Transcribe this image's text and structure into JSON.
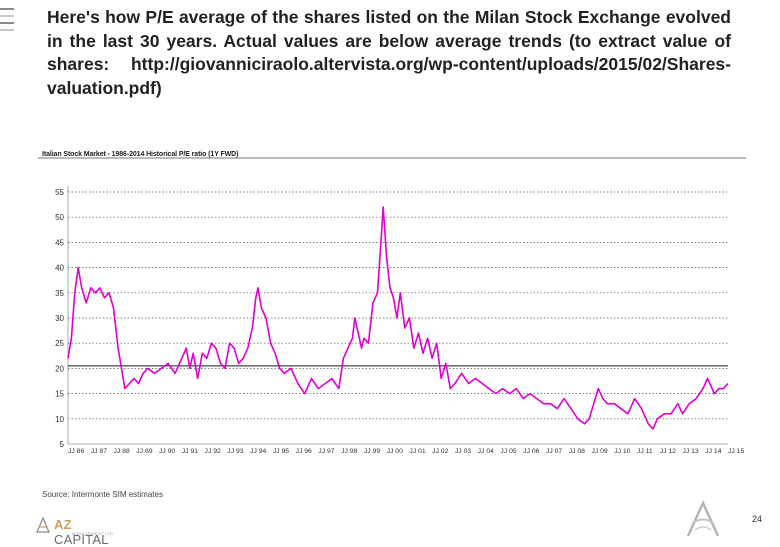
{
  "heading": "Here's how P/E average of the shares listed on the Milan Stock Exchange evolved in the last 30 years. Actual values are below average trends (to extract value of shares: http://giovanniciraolo.altervista.org/wp-content/uploads/2015/02/Shares-valuation.pdf)",
  "chart_title": "Italian Stock Market - 1986-2014 Historical P/E ratio (1Y FWD)",
  "source": "Source: Intermonte SIM estimates",
  "footer": {
    "logo_text_a": "AZ",
    "logo_text_b": "CAPITAL",
    "logo_sub": "MANAGEMENT LTD",
    "page_number": "24"
  },
  "colors": {
    "series": "#e000d0",
    "average_line": "#1a1a1a",
    "heading": "#222222"
  },
  "chart_data": {
    "type": "line",
    "title": "Italian Stock Market - 1986-2014 Historical P/E ratio (1Y FWD)",
    "xlabel": "",
    "ylabel": "",
    "ylim": [
      5,
      55
    ],
    "yticks": [
      5,
      10,
      15,
      20,
      25,
      30,
      35,
      40,
      45,
      50,
      55
    ],
    "xlim": [
      1986,
      2015
    ],
    "xtick_labels": [
      "JJ 86",
      "JJ 87",
      "JJ 88",
      "JJ 89",
      "JJ 90",
      "JJ 91",
      "JJ 92",
      "JJ 93",
      "JJ 94",
      "JJ 95",
      "JJ 96",
      "JJ 97",
      "JJ 98",
      "JJ 99",
      "JJ 00",
      "JJ 01",
      "JJ 02",
      "JJ 03",
      "JJ 04",
      "JJ 05",
      "JJ 06",
      "JJ 07",
      "JJ 08",
      "JJ 09",
      "JJ 10",
      "JJ 11",
      "JJ 12",
      "JJ 13",
      "JJ 14",
      "JJ 15"
    ],
    "grid": "horizontal dotted",
    "average_line": 20.5,
    "series": [
      {
        "values": [
          [
            1986.0,
            22
          ],
          [
            1986.15,
            26
          ],
          [
            1986.3,
            35
          ],
          [
            1986.45,
            40
          ],
          [
            1986.6,
            36
          ],
          [
            1986.8,
            33
          ],
          [
            1987.0,
            36
          ],
          [
            1987.2,
            35
          ],
          [
            1987.4,
            36
          ],
          [
            1987.6,
            34
          ],
          [
            1987.8,
            35
          ],
          [
            1988.0,
            32
          ],
          [
            1988.1,
            28
          ],
          [
            1988.2,
            24
          ],
          [
            1988.35,
            20
          ],
          [
            1988.5,
            16
          ],
          [
            1988.7,
            17
          ],
          [
            1988.9,
            18
          ],
          [
            1989.1,
            17
          ],
          [
            1989.3,
            19
          ],
          [
            1989.5,
            20
          ],
          [
            1989.8,
            19
          ],
          [
            1990.1,
            20
          ],
          [
            1990.4,
            21
          ],
          [
            1990.7,
            19
          ],
          [
            1991.0,
            22
          ],
          [
            1991.2,
            24
          ],
          [
            1991.35,
            20
          ],
          [
            1991.5,
            23
          ],
          [
            1991.7,
            18
          ],
          [
            1991.9,
            23
          ],
          [
            1992.1,
            22
          ],
          [
            1992.3,
            25
          ],
          [
            1992.5,
            24
          ],
          [
            1992.7,
            21
          ],
          [
            1992.9,
            20
          ],
          [
            1993.1,
            25
          ],
          [
            1993.3,
            24
          ],
          [
            1993.5,
            21
          ],
          [
            1993.7,
            22
          ],
          [
            1993.9,
            24
          ],
          [
            1994.1,
            28
          ],
          [
            1994.25,
            34
          ],
          [
            1994.35,
            36
          ],
          [
            1994.5,
            32
          ],
          [
            1994.7,
            30
          ],
          [
            1994.9,
            25
          ],
          [
            1995.1,
            23
          ],
          [
            1995.3,
            20
          ],
          [
            1995.5,
            19
          ],
          [
            1995.8,
            20
          ],
          [
            1996.1,
            17
          ],
          [
            1996.4,
            15
          ],
          [
            1996.7,
            18
          ],
          [
            1997.0,
            16
          ],
          [
            1997.3,
            17
          ],
          [
            1997.6,
            18
          ],
          [
            1997.9,
            16
          ],
          [
            1998.1,
            22
          ],
          [
            1998.3,
            24
          ],
          [
            1998.5,
            26
          ],
          [
            1998.6,
            30
          ],
          [
            1998.75,
            27
          ],
          [
            1998.9,
            24
          ],
          [
            1999.0,
            26
          ],
          [
            1999.2,
            25
          ],
          [
            1999.4,
            33
          ],
          [
            1999.6,
            35
          ],
          [
            1999.75,
            45
          ],
          [
            1999.85,
            52
          ],
          [
            2000.0,
            42
          ],
          [
            2000.15,
            36
          ],
          [
            2000.3,
            34
          ],
          [
            2000.45,
            30
          ],
          [
            2000.6,
            35
          ],
          [
            2000.8,
            28
          ],
          [
            2001.0,
            30
          ],
          [
            2001.2,
            24
          ],
          [
            2001.4,
            27
          ],
          [
            2001.6,
            23
          ],
          [
            2001.8,
            26
          ],
          [
            2002.0,
            22
          ],
          [
            2002.2,
            25
          ],
          [
            2002.4,
            18
          ],
          [
            2002.6,
            21
          ],
          [
            2002.8,
            16
          ],
          [
            2003.0,
            17
          ],
          [
            2003.3,
            19
          ],
          [
            2003.6,
            17
          ],
          [
            2003.9,
            18
          ],
          [
            2004.2,
            17
          ],
          [
            2004.5,
            16
          ],
          [
            2004.8,
            15
          ],
          [
            2005.1,
            16
          ],
          [
            2005.4,
            15
          ],
          [
            2005.7,
            16
          ],
          [
            2006.0,
            14
          ],
          [
            2006.3,
            15
          ],
          [
            2006.6,
            14
          ],
          [
            2006.9,
            13
          ],
          [
            2007.2,
            13
          ],
          [
            2007.5,
            12
          ],
          [
            2007.8,
            14
          ],
          [
            2008.1,
            12
          ],
          [
            2008.4,
            10
          ],
          [
            2008.7,
            9
          ],
          [
            2008.9,
            10
          ],
          [
            2009.1,
            13
          ],
          [
            2009.3,
            16
          ],
          [
            2009.5,
            14
          ],
          [
            2009.7,
            13
          ],
          [
            2010.0,
            13
          ],
          [
            2010.3,
            12
          ],
          [
            2010.6,
            11
          ],
          [
            2010.9,
            14
          ],
          [
            2011.2,
            12
          ],
          [
            2011.5,
            9
          ],
          [
            2011.7,
            8
          ],
          [
            2011.9,
            10
          ],
          [
            2012.2,
            11
          ],
          [
            2012.5,
            11
          ],
          [
            2012.8,
            13
          ],
          [
            2013.0,
            11
          ],
          [
            2013.3,
            13
          ],
          [
            2013.6,
            14
          ],
          [
            2013.9,
            16
          ],
          [
            2014.1,
            18
          ],
          [
            2014.2,
            17
          ],
          [
            2014.4,
            15
          ],
          [
            2014.6,
            16
          ],
          [
            2014.8,
            16
          ],
          [
            2015.0,
            17
          ]
        ]
      }
    ]
  }
}
